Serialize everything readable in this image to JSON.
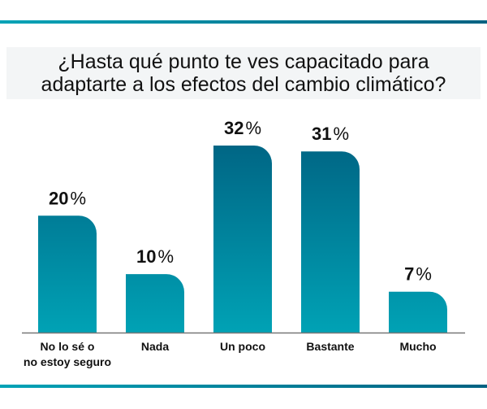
{
  "chart_data": {
    "type": "bar",
    "title": "¿Hasta qué punto te ves capacitado para adaptarte a los efectos del cambio climático?",
    "title_lines": [
      "¿Hasta qué punto te ves capacitado para",
      "adaptarte a los efectos del cambio climático?"
    ],
    "categories": [
      "No lo sé o no estoy seguro",
      "Nada",
      "Un poco",
      "Bastante",
      "Mucho"
    ],
    "category_lines": [
      [
        "No lo sé o",
        "no estoy seguro"
      ],
      [
        "Nada"
      ],
      [
        "Un poco"
      ],
      [
        "Bastante"
      ],
      [
        "Mucho"
      ]
    ],
    "values": [
      20,
      10,
      32,
      31,
      7
    ],
    "value_labels": [
      "20",
      "10",
      "32",
      "31",
      "7"
    ],
    "unit": "%",
    "ylim": [
      0,
      32
    ],
    "grid": false,
    "legend": "none",
    "colors": {
      "bar_top": "#006685",
      "bar_bottom": "#00a2b5",
      "stripe_left": "#00a3b6",
      "stripe_right": "#006282",
      "axis": "#777777"
    }
  }
}
